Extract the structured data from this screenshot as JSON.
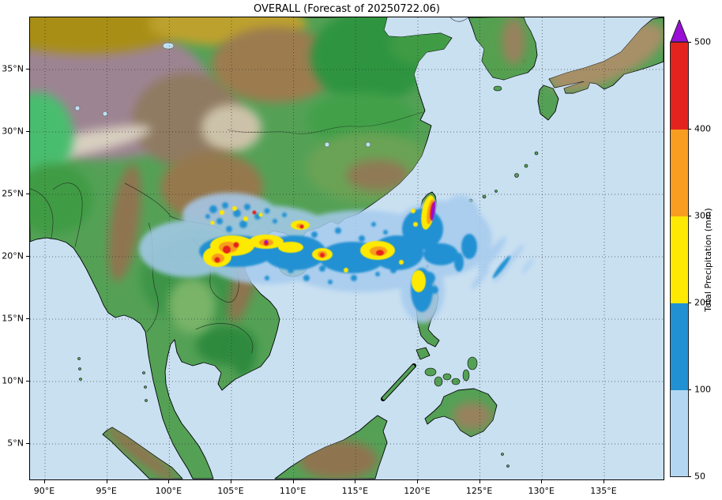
{
  "chart_data": {
    "type": "heatmap",
    "title": "OVERALL (Forecast of 20250722.06)",
    "map_region": "East and Southeast Asia, Bay of Bengal to Japan, terrain relief basemap with forecast rainfall overlay",
    "x_axis": {
      "ticks": [
        "90°E",
        "95°E",
        "100°E",
        "105°E",
        "110°E",
        "115°E",
        "120°E",
        "125°E",
        "130°E",
        "135°E"
      ],
      "range_deg_east": [
        88.8,
        139.8
      ]
    },
    "y_axis": {
      "ticks": [
        "35°N",
        "30°N",
        "25°N",
        "20°N",
        "15°N",
        "10°N",
        "5°N"
      ],
      "range_deg_north": [
        2.2,
        39.2
      ]
    },
    "grid": "black dotted graticule every 5 degrees",
    "colorbar": {
      "label": "Total Precipitation (mm)",
      "tick_values": [
        50,
        100,
        200,
        300,
        400,
        500
      ],
      "levels": [
        {
          "min": 50,
          "max": 100,
          "color": "#b3d7f2"
        },
        {
          "min": 100,
          "max": 200,
          "color": "#2191d3"
        },
        {
          "min": 200,
          "max": 300,
          "color": "#fee903"
        },
        {
          "min": 300,
          "max": 400,
          "color": "#f89d1f"
        },
        {
          "min": 400,
          "max": 500,
          "color": "#e5231e"
        },
        {
          "min": 500,
          "max": null,
          "color": "#990fd6",
          "shape": "triangle-cap"
        }
      ]
    },
    "precipitation_features": [
      {
        "area": "South China coast / Gulf of Tonkin (103-110°E, 19-23°N)",
        "intensity": "100-300 mm band with embedded 300-500 mm cells"
      },
      {
        "area": "Northern South China Sea offshore band (110-122°E, 17-24°N)",
        "intensity": "mostly 50-200 mm; isolated 200-500 mm cluster near 117°E 20.5°N"
      },
      {
        "area": "Taiwan central mountain range",
        "intensity": "narrow >500 mm (purple) swath flanked by 200-400 mm"
      },
      {
        "area": "Northwest Luzon, Philippines",
        "intensity": "100-300 mm"
      },
      {
        "area": "Seas southeast and east of Taiwan (122-128°E)",
        "intensity": "thin diagonal 50-100 mm rainband streaks"
      },
      {
        "area": "Yunnan/Guangxi inland (103-108°E, 22-24.5°N)",
        "intensity": "scattered 50-200 mm speckles with few 200-300 mm spots"
      }
    ]
  }
}
